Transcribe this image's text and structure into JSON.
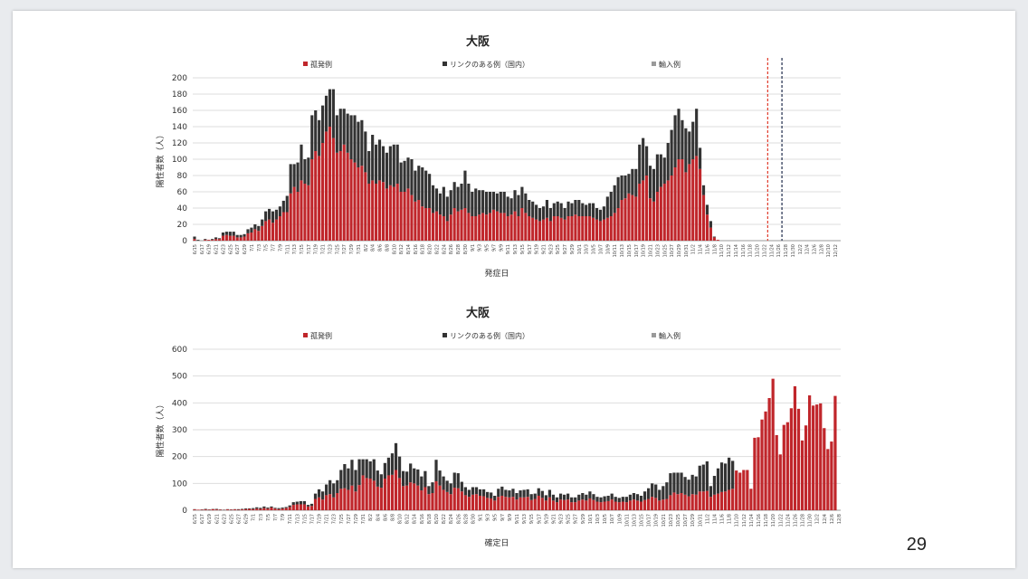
{
  "page_number": "29",
  "colors": {
    "sporadic": "#c0262b",
    "linked": "#333333",
    "imported": "#9a9a9a",
    "grid": "#dddddd"
  },
  "chart_data": [
    {
      "type": "bar",
      "stacked": true,
      "title": "大阪",
      "xlabel": "発症日",
      "ylabel": "陽性者数（人）",
      "ylim": [
        0,
        200
      ],
      "yticks": [
        0,
        20,
        40,
        60,
        80,
        100,
        120,
        140,
        160,
        180,
        200
      ],
      "legend": [
        "孤発例",
        "リンクのある例（国内）",
        "輸入例"
      ],
      "legend_position": "top",
      "start_date": "2020-06-15",
      "days": 182,
      "tick_every": 2,
      "series": [
        {
          "name": "孤発例",
          "values": [
            2,
            0,
            0,
            1,
            1,
            1,
            2,
            2,
            6,
            7,
            6,
            6,
            4,
            4,
            5,
            9,
            10,
            14,
            12,
            18,
            24,
            26,
            22,
            26,
            30,
            35,
            35,
            58,
            66,
            60,
            74,
            70,
            68,
            100,
            110,
            104,
            120,
            134,
            140,
            126,
            108,
            110,
            118,
            108,
            100,
            96,
            90,
            92,
            84,
            70,
            74,
            70,
            74,
            72,
            64,
            68,
            66,
            70,
            60,
            60,
            64,
            56,
            48,
            50,
            42,
            40,
            40,
            34,
            36,
            32,
            30,
            24,
            32,
            40,
            36,
            38,
            40,
            34,
            30,
            30,
            32,
            34,
            32,
            34,
            38,
            36,
            34,
            34,
            30,
            32,
            36,
            30,
            40,
            34,
            30,
            28,
            26,
            24,
            26,
            28,
            24,
            30,
            30,
            28,
            26,
            30,
            30,
            32,
            30,
            30,
            30,
            30,
            28,
            26,
            24,
            26,
            28,
            30,
            34,
            40,
            50,
            52,
            58,
            56,
            54,
            70,
            74,
            80,
            52,
            48,
            60,
            66,
            70,
            74,
            80,
            90,
            100,
            100,
            84,
            94,
            100,
            104,
            88,
            56,
            32,
            16,
            4,
            1,
            0,
            0,
            0,
            0,
            0,
            0,
            0,
            0,
            0,
            0,
            0,
            0,
            0,
            0,
            0,
            0,
            0,
            0,
            0,
            0,
            0,
            0,
            0,
            0,
            0,
            0,
            0,
            0,
            0,
            0
          ]
        },
        {
          "name": "リンクのある例（国内）",
          "values": [
            3,
            1,
            0,
            1,
            0,
            1,
            2,
            1,
            4,
            4,
            5,
            5,
            3,
            3,
            3,
            5,
            6,
            6,
            6,
            8,
            12,
            13,
            14,
            12,
            12,
            14,
            20,
            36,
            28,
            36,
            44,
            30,
            34,
            54,
            50,
            44,
            46,
            44,
            46,
            60,
            46,
            52,
            44,
            48,
            54,
            58,
            56,
            56,
            50,
            40,
            56,
            48,
            50,
            44,
            44,
            48,
            52,
            48,
            36,
            38,
            38,
            44,
            38,
            42,
            48,
            46,
            42,
            34,
            28,
            26,
            36,
            30,
            30,
            32,
            30,
            32,
            46,
            36,
            30,
            34,
            30,
            28,
            28,
            26,
            22,
            22,
            26,
            26,
            24,
            20,
            26,
            26,
            26,
            24,
            20,
            20,
            18,
            16,
            16,
            22,
            16,
            16,
            18,
            18,
            14,
            18,
            16,
            18,
            20,
            16,
            14,
            16,
            18,
            14,
            14,
            16,
            26,
            30,
            34,
            38,
            30,
            28,
            24,
            32,
            34,
            48,
            52,
            36,
            40,
            40,
            46,
            40,
            32,
            46,
            56,
            64,
            62,
            48,
            54,
            40,
            46,
            58,
            26,
            12,
            12,
            8,
            1,
            0,
            0,
            0,
            0,
            0,
            0,
            0,
            0,
            0,
            0,
            0,
            0,
            0,
            0,
            0,
            0,
            0,
            0,
            0,
            0,
            0,
            0,
            0,
            0,
            0,
            0,
            0,
            0,
            0,
            0,
            0
          ]
        },
        {
          "name": "輸入例",
          "values": [
            0,
            0,
            0,
            0,
            0,
            0,
            0,
            0,
            0,
            0,
            0,
            0,
            0,
            0,
            0,
            0,
            0,
            0,
            0,
            0,
            0,
            0,
            0,
            0,
            0,
            0,
            0,
            0,
            0,
            0,
            0,
            0,
            0,
            0,
            0,
            0,
            0,
            0,
            0,
            0,
            0,
            0,
            0,
            0,
            0,
            0,
            0,
            0,
            0,
            0,
            0,
            0,
            0,
            0,
            0,
            0,
            0,
            0,
            0,
            0,
            0,
            0,
            0,
            0,
            0,
            0,
            0,
            0,
            0,
            0,
            0,
            0,
            0,
            0,
            0,
            0,
            0,
            0,
            0,
            0,
            0,
            0,
            0,
            0,
            0,
            0,
            0,
            0,
            0,
            0,
            0,
            0,
            0,
            0,
            0,
            0,
            0,
            0,
            0,
            0,
            0,
            0,
            0,
            0,
            0,
            0,
            0,
            0,
            0,
            0,
            0,
            0,
            0,
            0,
            0,
            0,
            0,
            0,
            0,
            0,
            0,
            0,
            0,
            0,
            0,
            0,
            0,
            0,
            0,
            0,
            0,
            0,
            0,
            0,
            0,
            0,
            0,
            0,
            0,
            0,
            0,
            0,
            0,
            0,
            0,
            0,
            0,
            0,
            0,
            0,
            0,
            0,
            0,
            0,
            0,
            0,
            0,
            0,
            0,
            0,
            0,
            0,
            0,
            0,
            0,
            0,
            0,
            0,
            0,
            0,
            0,
            0,
            0,
            0,
            0,
            0,
            0,
            0,
            0,
            0,
            0,
            0
          ]
        }
      ],
      "reference_lines": [
        {
          "date": "2020-11-23",
          "color": "#e03a2a"
        },
        {
          "date": "2020-11-27",
          "color": "#1e2a4a"
        }
      ]
    },
    {
      "type": "bar",
      "stacked": true,
      "title": "大阪",
      "xlabel": "確定日",
      "ylabel": "陽性者数（人）",
      "ylim": [
        0,
        600
      ],
      "yticks": [
        0,
        100,
        200,
        300,
        400,
        500,
        600
      ],
      "legend": [
        "孤発例",
        "リンクのある例（国内）",
        "輸入例"
      ],
      "legend_position": "top",
      "start_date": "2020-06-15",
      "days": 177,
      "tick_every": 2,
      "series": [
        {
          "name": "孤発例",
          "values": [
            3,
            2,
            2,
            3,
            2,
            4,
            3,
            2,
            1,
            3,
            2,
            3,
            2,
            3,
            4,
            5,
            4,
            6,
            5,
            8,
            6,
            10,
            6,
            4,
            6,
            8,
            12,
            20,
            22,
            22,
            22,
            14,
            16,
            42,
            48,
            40,
            56,
            60,
            48,
            64,
            80,
            82,
            76,
            92,
            70,
            94,
            130,
            120,
            118,
            110,
            88,
            84,
            118,
            130,
            132,
            150,
            120,
            90,
            92,
            104,
            100,
            92,
            74,
            86,
            60,
            64,
            108,
            92,
            76,
            68,
            60,
            84,
            82,
            70,
            56,
            50,
            58,
            60,
            54,
            52,
            46,
            44,
            36,
            50,
            54,
            50,
            48,
            50,
            40,
            48,
            48,
            50,
            38,
            42,
            54,
            46,
            36,
            48,
            36,
            30,
            40,
            38,
            40,
            30,
            30,
            36,
            40,
            36,
            44,
            38,
            32,
            30,
            32,
            34,
            40,
            32,
            30,
            32,
            30,
            36,
            40,
            36,
            32,
            38,
            42,
            50,
            46,
            36,
            40,
            42,
            56,
            66,
            60,
            64,
            58,
            52,
            60,
            58,
            70,
            70,
            72,
            50,
            58,
            62,
            68,
            70,
            76,
            80,
            148,
            140,
            150,
            150,
            80,
            270,
            272,
            338,
            368,
            418,
            490,
            280,
            208,
            318,
            328,
            380,
            462,
            378,
            260,
            316,
            428,
            390,
            394,
            398,
            306,
            228,
            256,
            426
          ]
        },
        {
          "name": "リンクのある例（国内）",
          "values": [
            1,
            0,
            1,
            2,
            1,
            1,
            2,
            1,
            1,
            1,
            1,
            1,
            2,
            2,
            3,
            2,
            4,
            5,
            4,
            6,
            4,
            4,
            3,
            4,
            4,
            4,
            6,
            10,
            10,
            12,
            12,
            6,
            8,
            20,
            30,
            30,
            40,
            52,
            52,
            48,
            70,
            90,
            80,
            96,
            80,
            96,
            60,
            70,
            64,
            80,
            60,
            50,
            58,
            66,
            80,
            100,
            80,
            56,
            52,
            70,
            56,
            60,
            52,
            60,
            30,
            40,
            80,
            56,
            50,
            42,
            40,
            56,
            56,
            36,
            30,
            26,
            28,
            26,
            24,
            26,
            22,
            22,
            18,
            30,
            34,
            26,
            26,
            30,
            24,
            26,
            28,
            28,
            22,
            20,
            28,
            26,
            20,
            28,
            22,
            18,
            22,
            20,
            22,
            18,
            18,
            22,
            24,
            22,
            26,
            22,
            18,
            18,
            20,
            20,
            22,
            18,
            16,
            18,
            20,
            22,
            24,
            24,
            22,
            32,
            40,
            50,
            50,
            40,
            50,
            62,
            82,
            74,
            80,
            76,
            66,
            62,
            72,
            68,
            96,
            100,
            110,
            40,
            70,
            94,
            110,
            104,
            120,
            104,
            0,
            0,
            0,
            0,
            0,
            0,
            0,
            0,
            0,
            0,
            0,
            0,
            0,
            0,
            0,
            0,
            0,
            0,
            0,
            0,
            0,
            0,
            0,
            0,
            0,
            0,
            0
          ]
        },
        {
          "name": "輸入例",
          "values": [
            0,
            0,
            0,
            0,
            0,
            0,
            0,
            0,
            0,
            0,
            0,
            0,
            0,
            0,
            0,
            0,
            0,
            0,
            0,
            0,
            0,
            0,
            0,
            0,
            0,
            0,
            0,
            0,
            0,
            0,
            0,
            0,
            0,
            0,
            0,
            0,
            0,
            0,
            0,
            0,
            0,
            0,
            0,
            0,
            0,
            0,
            0,
            0,
            0,
            0,
            0,
            0,
            0,
            0,
            0,
            0,
            0,
            0,
            0,
            0,
            0,
            0,
            0,
            0,
            0,
            0,
            0,
            0,
            0,
            0,
            0,
            0,
            0,
            0,
            0,
            0,
            0,
            0,
            0,
            0,
            0,
            0,
            0,
            0,
            0,
            0,
            0,
            0,
            0,
            0,
            0,
            0,
            0,
            0,
            0,
            0,
            0,
            0,
            0,
            0,
            0,
            0,
            0,
            0,
            0,
            0,
            0,
            0,
            0,
            0,
            0,
            0,
            0,
            0,
            0,
            0,
            0,
            0,
            0,
            0,
            0,
            0,
            0,
            0,
            0,
            0,
            0,
            0,
            0,
            0,
            0,
            0,
            0,
            0,
            0,
            0,
            0,
            0,
            0,
            0,
            0,
            0,
            0,
            0,
            0,
            0,
            0,
            0,
            0,
            0,
            0,
            0,
            0,
            0,
            0,
            0,
            0,
            0,
            0,
            0,
            0,
            0,
            0,
            0,
            0,
            0,
            0,
            0,
            0,
            0,
            0,
            0,
            0,
            0,
            0,
            0,
            0
          ]
        }
      ]
    }
  ]
}
